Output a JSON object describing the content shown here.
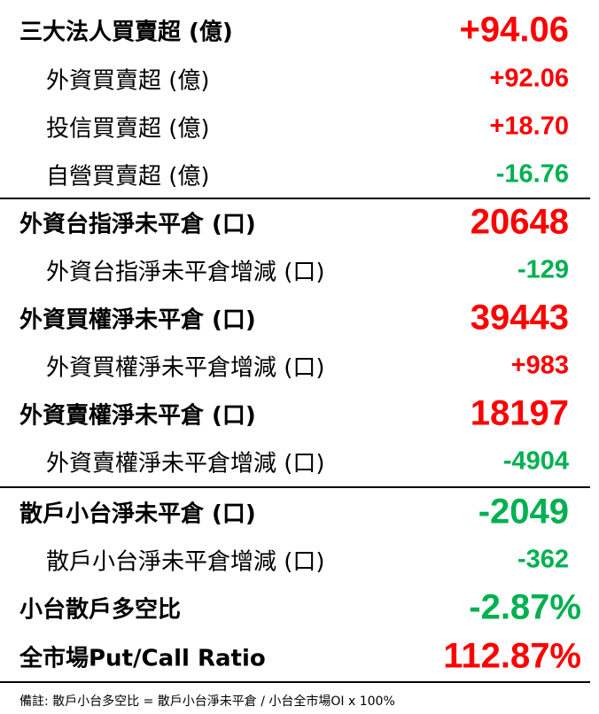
{
  "colors": {
    "positive": "#ff0000",
    "negative": "#00b050"
  },
  "rows": [
    {
      "label": "三大法人買賣超 (億)",
      "value": "+94.06",
      "level": "main",
      "sign": "positive"
    },
    {
      "label": "外資買賣超 (億)",
      "value": "+92.06",
      "level": "sub",
      "sign": "positive"
    },
    {
      "label": "投信買賣超 (億)",
      "value": "+18.70",
      "level": "sub",
      "sign": "positive"
    },
    {
      "label": "自營買賣超 (億)",
      "value": "-16.76",
      "level": "sub",
      "sign": "negative"
    },
    {
      "label": "外資台指淨未平倉 (口)",
      "value": "20648",
      "level": "main",
      "sign": "positive"
    },
    {
      "label": "外資台指淨未平倉增減 (口)",
      "value": "-129",
      "level": "sub",
      "sign": "negative"
    },
    {
      "label": "外資買權淨未平倉 (口)",
      "value": "39443",
      "level": "main",
      "sign": "positive"
    },
    {
      "label": "外資買權淨未平倉增減 (口)",
      "value": "+983",
      "level": "sub",
      "sign": "positive"
    },
    {
      "label": "外資賣權淨未平倉 (口)",
      "value": "18197",
      "level": "main",
      "sign": "positive"
    },
    {
      "label": "外資賣權淨未平倉增減 (口)",
      "value": "-4904",
      "level": "sub",
      "sign": "negative"
    },
    {
      "label": "散戶小台淨未平倉 (口)",
      "value": "-2049",
      "level": "main",
      "sign": "negative"
    },
    {
      "label": "散戶小台淨未平倉增減 (口)",
      "value": "-362",
      "level": "sub",
      "sign": "negative"
    },
    {
      "label": "小台散戶多空比",
      "value": "-2.87%",
      "level": "main",
      "sign": "negative"
    },
    {
      "label": "全市場Put/Call Ratio",
      "value": "112.87%",
      "level": "main",
      "sign": "positive"
    }
  ],
  "footnote": "備註:  散戶小台多空比 = 散戶小台淨未平倉 / 小台全市場OI x 100%"
}
